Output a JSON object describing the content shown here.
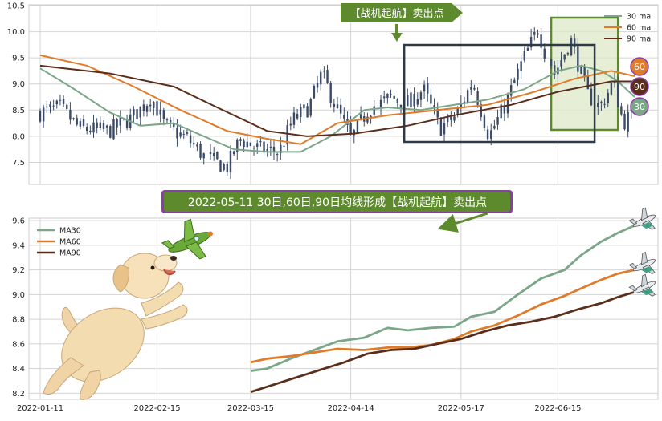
{
  "chart_data": [
    {
      "type": "candlestick",
      "ylim": [
        7.2,
        10.5
      ],
      "y_ticks": [
        "7.5",
        "8.0",
        "8.5",
        "9.0",
        "9.5",
        "10.0",
        "10.5"
      ],
      "y_tick_values": [
        7.5,
        8.0,
        8.5,
        9.0,
        9.5,
        10.0,
        10.5
      ],
      "grid": true,
      "legend_position": "top-right",
      "x_range": [
        "2022-01-11",
        "2022-07-08"
      ],
      "price_path": [
        [
          "2022-01-11",
          8.45
        ],
        [
          "2022-01-17",
          8.55
        ],
        [
          "2022-01-23",
          8.15
        ],
        [
          "2022-02-01",
          8.1
        ],
        [
          "2022-02-08",
          8.35
        ],
        [
          "2022-02-14",
          8.75
        ],
        [
          "2022-02-18",
          8.2
        ],
        [
          "2022-02-25",
          7.95
        ],
        [
          "2022-03-03",
          7.55
        ],
        [
          "2022-03-08",
          7.4
        ],
        [
          "2022-03-12",
          7.95
        ],
        [
          "2022-03-18",
          7.75
        ],
        [
          "2022-03-24",
          7.7
        ],
        [
          "2022-03-28",
          8.3
        ],
        [
          "2022-04-02",
          8.55
        ],
        [
          "2022-04-06",
          9.2
        ],
        [
          "2022-04-10",
          8.6
        ],
        [
          "2022-04-15",
          7.95
        ],
        [
          "2022-04-20",
          8.5
        ],
        [
          "2022-04-26",
          8.75
        ],
        [
          "2022-05-01",
          8.6
        ],
        [
          "2022-05-06",
          8.9
        ],
        [
          "2022-05-11",
          8.15
        ],
        [
          "2022-05-16",
          8.4
        ],
        [
          "2022-05-21",
          9.05
        ],
        [
          "2022-05-26",
          8.0
        ],
        [
          "2022-05-31",
          8.6
        ],
        [
          "2022-06-05",
          9.4
        ],
        [
          "2022-06-10",
          10.05
        ],
        [
          "2022-06-14",
          9.2
        ],
        [
          "2022-06-19",
          9.85
        ],
        [
          "2022-06-24",
          8.8
        ],
        [
          "2022-06-28",
          8.55
        ],
        [
          "2022-07-02",
          9.05
        ],
        [
          "2022-07-05",
          8.25
        ],
        [
          "2022-07-08",
          8.45
        ]
      ],
      "series": [
        {
          "name": "30 ma",
          "color": "#7ba688",
          "points": [
            [
              "2022-01-11",
              9.3
            ],
            [
              "2022-01-20",
              8.95
            ],
            [
              "2022-02-01",
              8.45
            ],
            [
              "2022-02-10",
              8.2
            ],
            [
              "2022-02-20",
              8.25
            ],
            [
              "2022-03-01",
              8.0
            ],
            [
              "2022-03-10",
              7.75
            ],
            [
              "2022-03-20",
              7.7
            ],
            [
              "2022-03-30",
              7.7
            ],
            [
              "2022-04-08",
              8.0
            ],
            [
              "2022-04-18",
              8.5
            ],
            [
              "2022-04-25",
              8.55
            ],
            [
              "2022-05-05",
              8.5
            ],
            [
              "2022-05-15",
              8.6
            ],
            [
              "2022-05-25",
              8.7
            ],
            [
              "2022-06-05",
              8.9
            ],
            [
              "2022-06-15",
              9.25
            ],
            [
              "2022-06-22",
              9.35
            ],
            [
              "2022-06-28",
              9.25
            ],
            [
              "2022-07-03",
              9.05
            ],
            [
              "2022-07-08",
              8.75
            ]
          ]
        },
        {
          "name": "60 ma",
          "color": "#e07b2a",
          "points": [
            [
              "2022-01-11",
              9.55
            ],
            [
              "2022-01-25",
              9.35
            ],
            [
              "2022-02-08",
              8.95
            ],
            [
              "2022-02-22",
              8.5
            ],
            [
              "2022-03-08",
              8.1
            ],
            [
              "2022-03-20",
              7.95
            ],
            [
              "2022-03-30",
              7.85
            ],
            [
              "2022-04-10",
              8.25
            ],
            [
              "2022-04-25",
              8.4
            ],
            [
              "2022-05-10",
              8.5
            ],
            [
              "2022-05-25",
              8.6
            ],
            [
              "2022-06-08",
              8.85
            ],
            [
              "2022-06-20",
              9.1
            ],
            [
              "2022-07-01",
              9.25
            ],
            [
              "2022-07-08",
              9.15
            ]
          ]
        },
        {
          "name": "90 ma",
          "color": "#5a2e1a",
          "points": [
            [
              "2022-01-11",
              9.35
            ],
            [
              "2022-02-01",
              9.2
            ],
            [
              "2022-02-20",
              8.95
            ],
            [
              "2022-03-05",
              8.55
            ],
            [
              "2022-03-20",
              8.1
            ],
            [
              "2022-04-01",
              8.0
            ],
            [
              "2022-04-15",
              8.05
            ],
            [
              "2022-05-01",
              8.2
            ],
            [
              "2022-05-15",
              8.4
            ],
            [
              "2022-06-01",
              8.6
            ],
            [
              "2022-06-15",
              8.85
            ],
            [
              "2022-07-01",
              9.05
            ],
            [
              "2022-07-08",
              9.05
            ]
          ]
        }
      ],
      "annotations": {
        "top_label": "【战机起航】卖出点",
        "side_badges": [
          "60",
          "90",
          "30"
        ],
        "highlight_window": [
          "2022-06-13",
          "2022-07-03"
        ],
        "signal_box": [
          "2022-04-30",
          "2022-06-26"
        ]
      }
    },
    {
      "type": "line",
      "ylim": [
        8.15,
        9.62
      ],
      "y_ticks": [
        "8.2",
        "8.4",
        "8.6",
        "8.8",
        "9.0",
        "9.2",
        "9.4",
        "9.6"
      ],
      "y_tick_values": [
        8.2,
        8.4,
        8.6,
        8.8,
        9.0,
        9.2,
        9.4,
        9.6
      ],
      "x_ticks": [
        "2022-01-11",
        "2022-02-15",
        "2022-03-15",
        "2022-04-14",
        "2022-05-17",
        "2022-06-15"
      ],
      "x_range": [
        "2022-01-11",
        "2022-07-08"
      ],
      "grid": true,
      "legend_position": "top-left",
      "banner": "2022-05-11 30日,60日,90日均线形成【战机起航】卖出点",
      "series": [
        {
          "name": "MA30",
          "color": "#7ba688",
          "points": [
            [
              "2022-03-15",
              8.38
            ],
            [
              "2022-03-20",
              8.4
            ],
            [
              "2022-03-27",
              8.48
            ],
            [
              "2022-04-03",
              8.55
            ],
            [
              "2022-04-10",
              8.62
            ],
            [
              "2022-04-18",
              8.65
            ],
            [
              "2022-04-25",
              8.73
            ],
            [
              "2022-05-01",
              8.71
            ],
            [
              "2022-05-08",
              8.73
            ],
            [
              "2022-05-15",
              8.74
            ],
            [
              "2022-05-20",
              8.82
            ],
            [
              "2022-05-27",
              8.86
            ],
            [
              "2022-06-03",
              9.0
            ],
            [
              "2022-06-10",
              9.13
            ],
            [
              "2022-06-17",
              9.2
            ],
            [
              "2022-06-22",
              9.32
            ],
            [
              "2022-06-28",
              9.43
            ],
            [
              "2022-07-03",
              9.5
            ],
            [
              "2022-07-08",
              9.56
            ]
          ]
        },
        {
          "name": "MA60",
          "color": "#e07b2a",
          "points": [
            [
              "2022-03-15",
              8.45
            ],
            [
              "2022-03-20",
              8.48
            ],
            [
              "2022-03-27",
              8.5
            ],
            [
              "2022-04-03",
              8.53
            ],
            [
              "2022-04-10",
              8.56
            ],
            [
              "2022-04-18",
              8.55
            ],
            [
              "2022-04-25",
              8.57
            ],
            [
              "2022-05-01",
              8.57
            ],
            [
              "2022-05-08",
              8.59
            ],
            [
              "2022-05-15",
              8.64
            ],
            [
              "2022-05-20",
              8.7
            ],
            [
              "2022-05-27",
              8.75
            ],
            [
              "2022-06-03",
              8.83
            ],
            [
              "2022-06-10",
              8.92
            ],
            [
              "2022-06-17",
              8.99
            ],
            [
              "2022-06-22",
              9.05
            ],
            [
              "2022-06-28",
              9.12
            ],
            [
              "2022-07-03",
              9.17
            ],
            [
              "2022-07-08",
              9.2
            ]
          ]
        },
        {
          "name": "MA90",
          "color": "#5a2e1a",
          "points": [
            [
              "2022-03-15",
              8.21
            ],
            [
              "2022-03-22",
              8.27
            ],
            [
              "2022-03-29",
              8.33
            ],
            [
              "2022-04-05",
              8.39
            ],
            [
              "2022-04-12",
              8.45
            ],
            [
              "2022-04-19",
              8.52
            ],
            [
              "2022-04-26",
              8.55
            ],
            [
              "2022-05-03",
              8.56
            ],
            [
              "2022-05-10",
              8.6
            ],
            [
              "2022-05-17",
              8.64
            ],
            [
              "2022-05-24",
              8.7
            ],
            [
              "2022-05-31",
              8.75
            ],
            [
              "2022-06-07",
              8.78
            ],
            [
              "2022-06-14",
              8.82
            ],
            [
              "2022-06-21",
              8.88
            ],
            [
              "2022-06-28",
              8.93
            ],
            [
              "2022-07-03",
              8.98
            ],
            [
              "2022-07-08",
              9.02
            ]
          ]
        }
      ]
    }
  ],
  "colors": {
    "ma30": "#7ba688",
    "ma60": "#e07b2a",
    "ma90": "#5a2e1a",
    "candle": "#3b4a66",
    "label_bg": "#5e8a2e",
    "label_bar": "#8a3fa8",
    "signal_box": "#2f3a48",
    "highlight_fill": "#dde8c8",
    "highlight_stroke": "#5e8a2e"
  },
  "decorations": {
    "puppy": "puppy-illustration",
    "airplane": "airplane-icon"
  }
}
